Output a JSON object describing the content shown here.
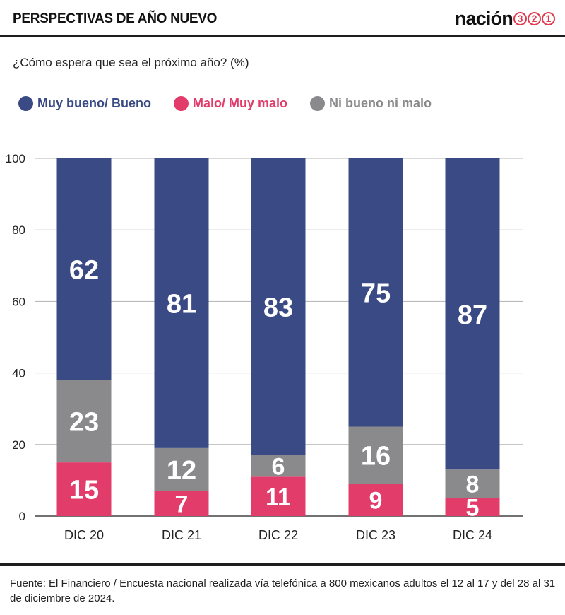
{
  "header": {
    "title": "PERSPECTIVAS DE AÑO NUEVO",
    "brand_word": "nación",
    "brand_numbers": [
      "3",
      "2",
      "1"
    ]
  },
  "subtitle": "¿Cómo espera que sea el próximo año? (%)",
  "legend": [
    {
      "label": "Muy bueno/ Bueno",
      "color": "#3a4a85"
    },
    {
      "label": "Malo/ Muy malo",
      "color": "#e23d6a"
    },
    {
      "label": "Ni bueno ni malo",
      "color": "#8a8a8d"
    }
  ],
  "chart_data": {
    "type": "bar",
    "stacked": true,
    "categories": [
      "DIC 20",
      "DIC 21",
      "DIC 22",
      "DIC 23",
      "DIC 24"
    ],
    "series": [
      {
        "name": "Malo/ Muy malo",
        "color": "#e23d6a",
        "values": [
          15,
          7,
          11,
          9,
          5
        ]
      },
      {
        "name": "Ni bueno ni malo",
        "color": "#8a8a8d",
        "values": [
          23,
          12,
          6,
          16,
          8
        ]
      },
      {
        "name": "Muy bueno/ Bueno",
        "color": "#3a4a85",
        "values": [
          62,
          81,
          83,
          75,
          87
        ]
      }
    ],
    "title": "¿Cómo espera que sea el próximo año? (%)",
    "ylim": [
      0,
      100
    ],
    "yticks": [
      0,
      20,
      40,
      60,
      80,
      100
    ],
    "grid": true,
    "legend_position": "top-left"
  },
  "source": "Fuente: El Financiero / Encuesta nacional realizada vía telefónica a 800 mexicanos adultos el 12 al 17 y del 28 al 31 de diciembre de 2024."
}
